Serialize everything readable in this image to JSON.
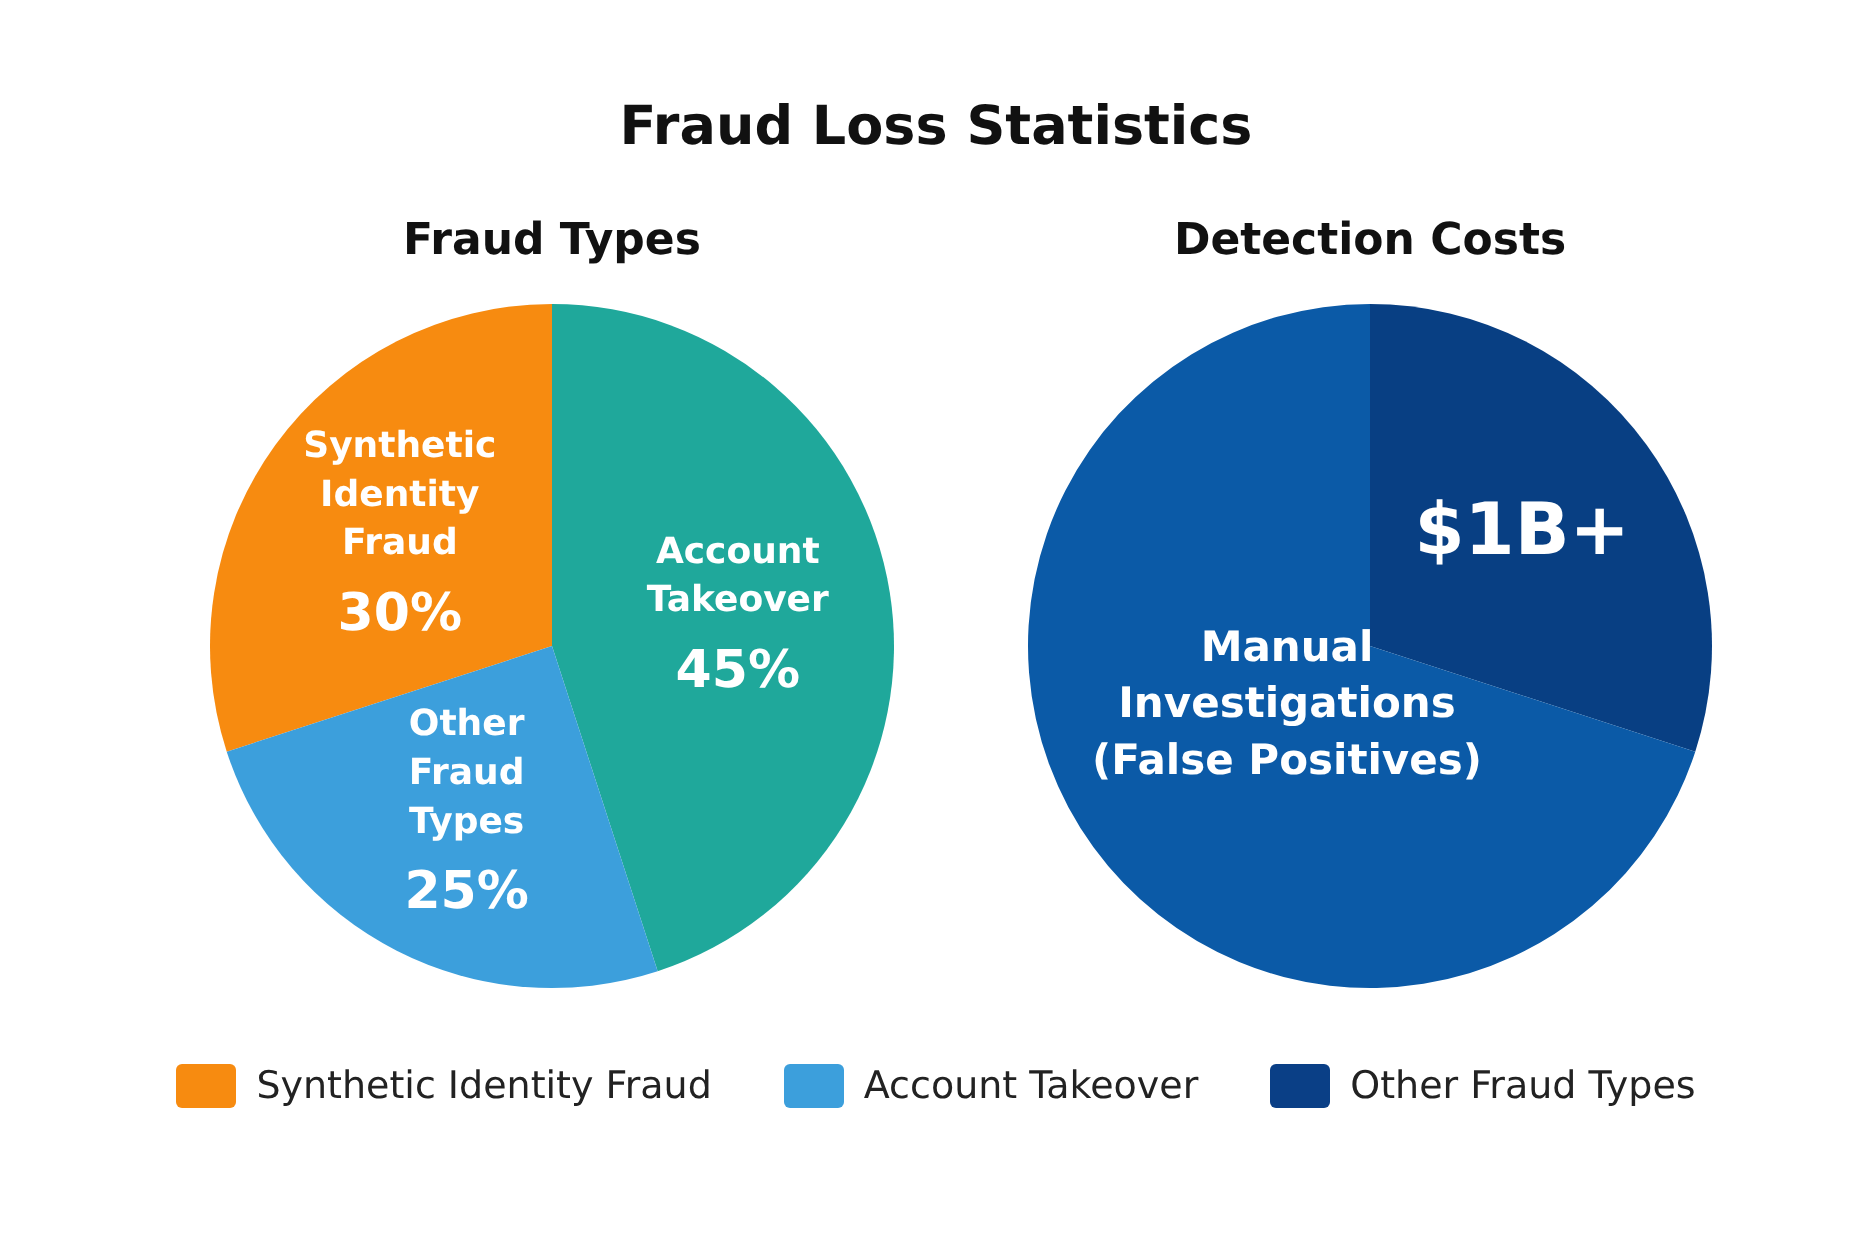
{
  "chart_data": [
    {
      "type": "other",
      "title": "Fraud Loss Statistics",
      "legend": "bottom",
      "series": [
        {
          "name": "Synthetic Identity Fraud",
          "color": "#f78b10"
        },
        {
          "name": "Account Takeover",
          "color": "#3c9fdc"
        },
        {
          "name": "Other Fraud Types",
          "color": "#0a3f86"
        }
      ]
    },
    {
      "type": "pie",
      "title": "Fraud Types",
      "categories": [
        "Synthetic Identity Fraud",
        "Account Takeover",
        "Other Fraud Types"
      ],
      "values": [
        30,
        45,
        25
      ],
      "colors": [
        "#f78b10",
        "#1fa89b",
        "#3c9fdc"
      ],
      "value_labels": [
        "30%",
        "45%",
        "25%"
      ]
    },
    {
      "type": "pie",
      "title": "Detection Costs",
      "categories": [
        "$1B+",
        "Manual Investigations (False Positives)"
      ],
      "values": [
        30,
        70
      ],
      "colors": [
        "#083f83",
        "#0b5aa7"
      ]
    }
  ]
}
